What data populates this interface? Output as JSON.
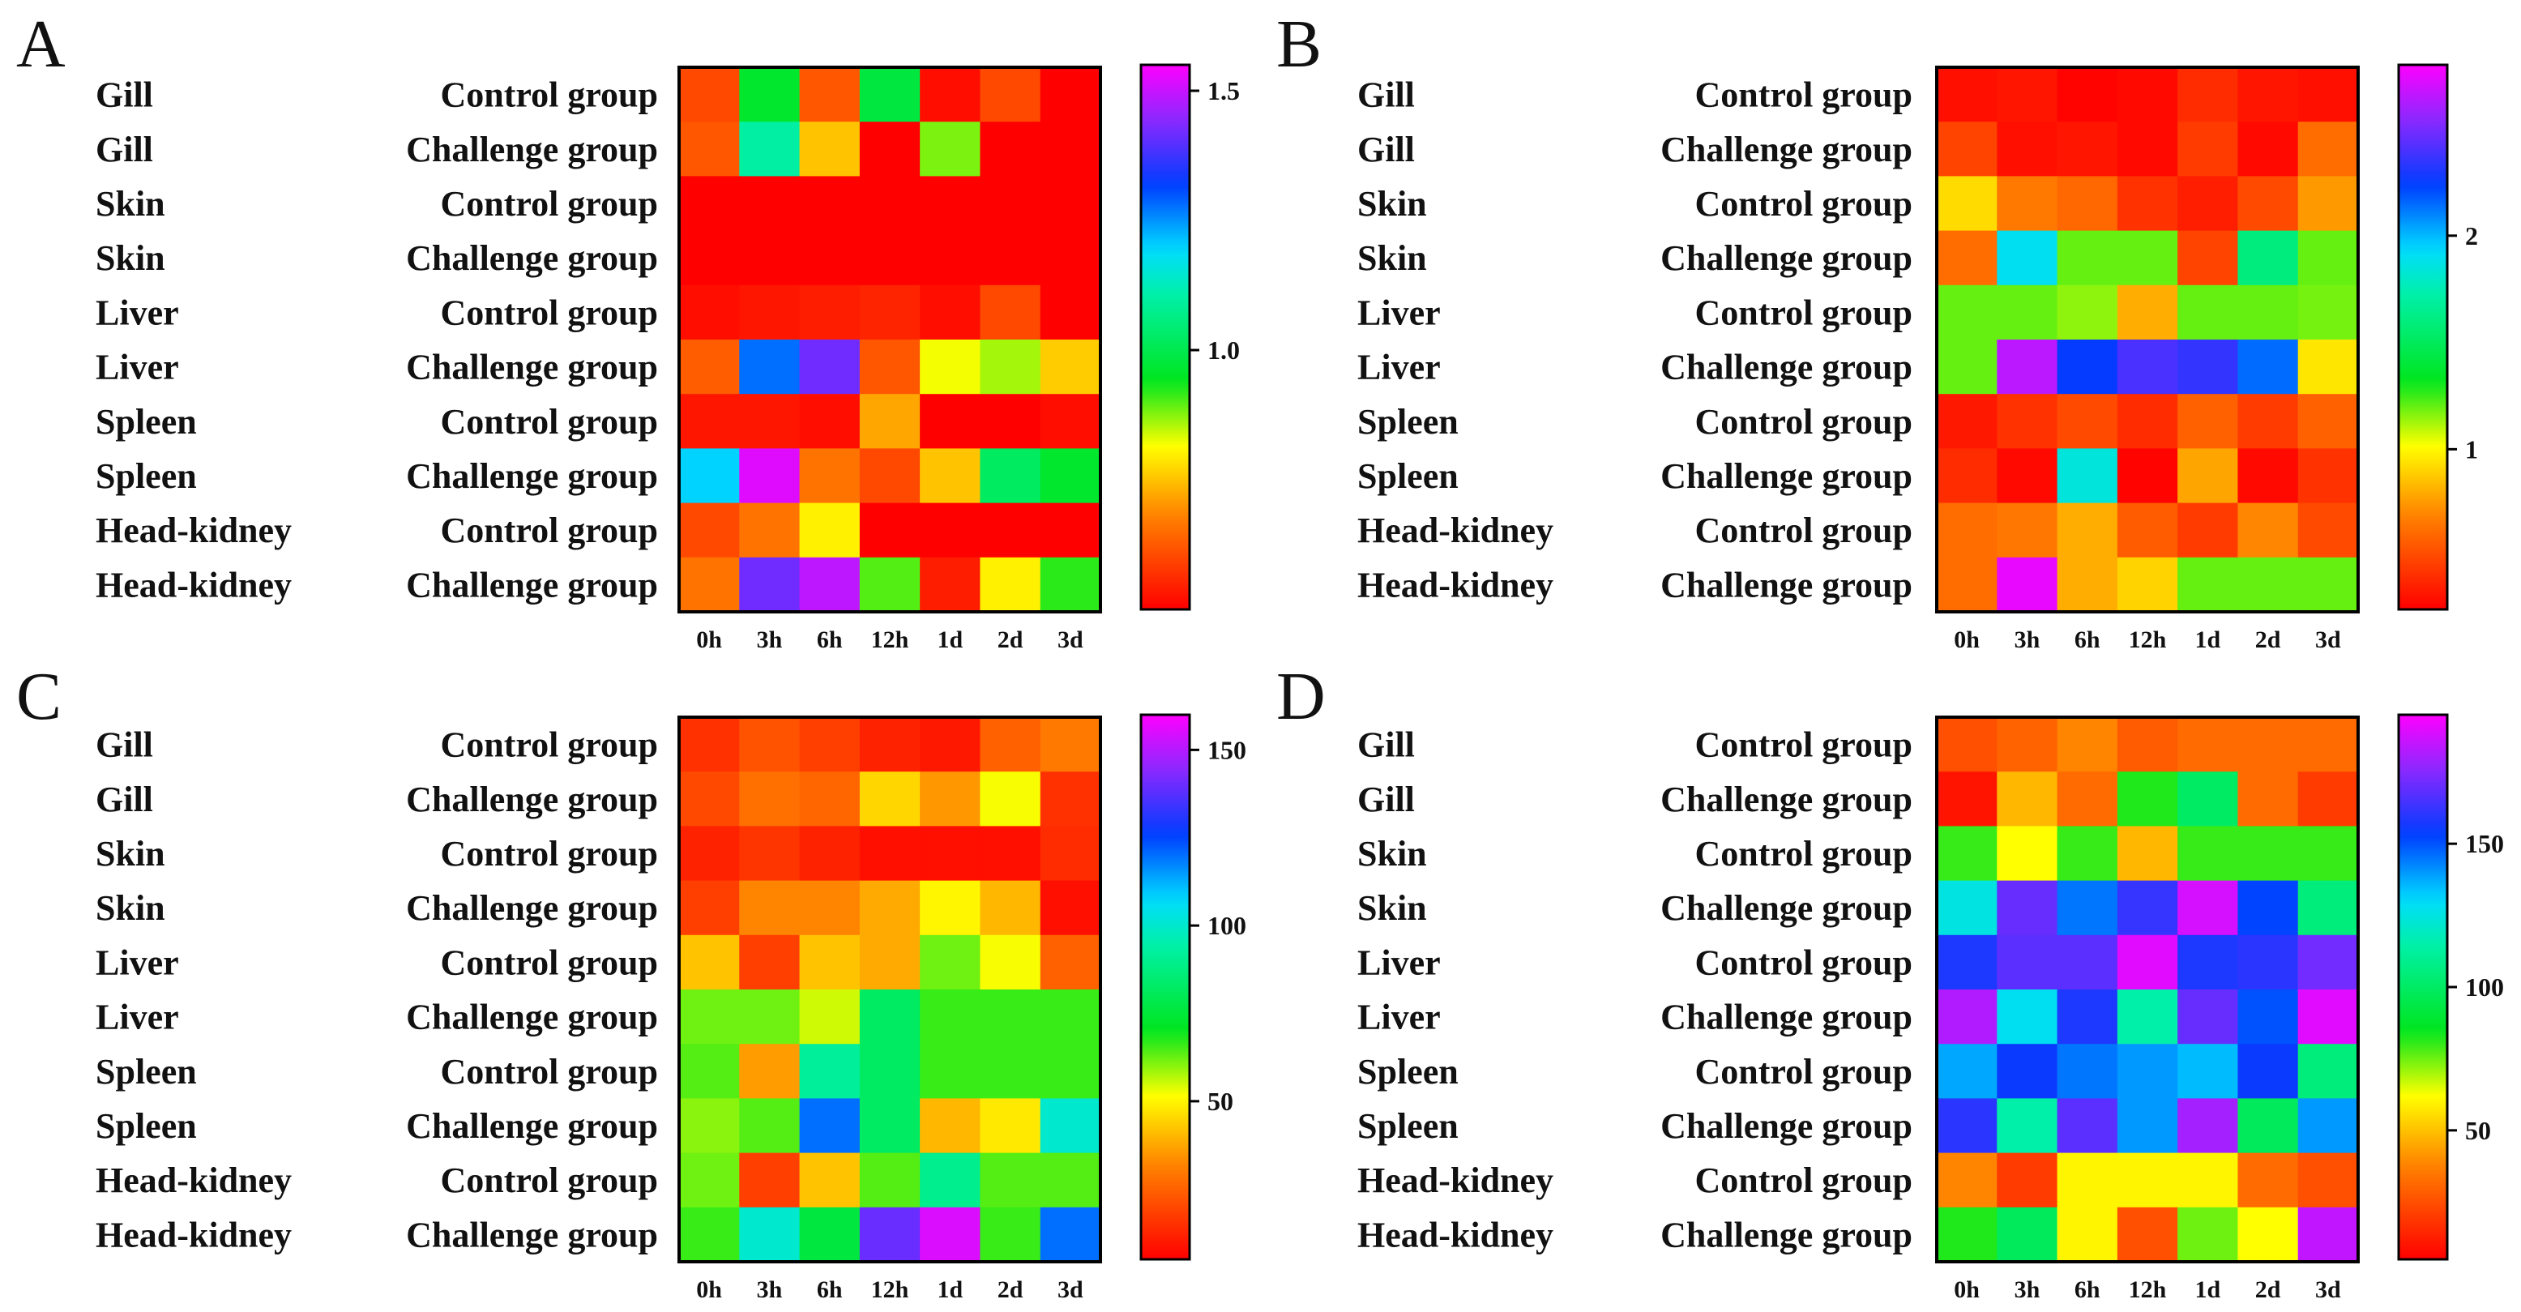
{
  "chart_data": [
    {
      "type": "heatmap",
      "panel": "A",
      "rows": [
        {
          "tissue": "Gill",
          "group": "Control group"
        },
        {
          "tissue": "Gill",
          "group": "Challenge group"
        },
        {
          "tissue": "Skin",
          "group": "Control group"
        },
        {
          "tissue": "Skin",
          "group": "Challenge group"
        },
        {
          "tissue": "Liver",
          "group": "Control group"
        },
        {
          "tissue": "Liver",
          "group": "Challenge group"
        },
        {
          "tissue": "Spleen",
          "group": "Control group"
        },
        {
          "tissue": "Spleen",
          "group": "Challenge group"
        },
        {
          "tissue": "Head-kidney",
          "group": "Control group"
        },
        {
          "tissue": "Head-kidney",
          "group": "Challenge group"
        }
      ],
      "columns": [
        "0h",
        "3h",
        "6h",
        "12h",
        "1d",
        "2d",
        "3d"
      ],
      "values": [
        [
          0.6,
          0.96,
          0.62,
          0.98,
          0.52,
          0.6,
          0.5
        ],
        [
          0.62,
          1.1,
          0.75,
          0.5,
          0.88,
          0.5,
          0.5
        ],
        [
          0.5,
          0.5,
          0.5,
          0.5,
          0.5,
          0.5,
          0.5
        ],
        [
          0.5,
          0.5,
          0.5,
          0.5,
          0.5,
          0.5,
          0.5
        ],
        [
          0.52,
          0.53,
          0.54,
          0.55,
          0.52,
          0.6,
          0.5
        ],
        [
          0.63,
          1.28,
          1.42,
          0.62,
          0.82,
          0.86,
          0.76
        ],
        [
          0.53,
          0.53,
          0.52,
          0.72,
          0.5,
          0.5,
          0.52
        ],
        [
          1.2,
          1.52,
          0.66,
          0.6,
          0.75,
          1.02,
          0.96
        ],
        [
          0.6,
          0.66,
          0.8,
          0.5,
          0.5,
          0.5,
          0.5
        ],
        [
          0.66,
          1.42,
          1.49,
          0.9,
          0.54,
          0.8,
          0.92
        ]
      ],
      "colorbar": {
        "min": 0.5,
        "max": 1.55,
        "ticks": [
          1.0,
          1.5
        ],
        "tick_labels": [
          "1.0",
          "1.5"
        ]
      }
    },
    {
      "type": "heatmap",
      "panel": "B",
      "rows": [
        {
          "tissue": "Gill",
          "group": "Control group"
        },
        {
          "tissue": "Gill",
          "group": "Challenge group"
        },
        {
          "tissue": "Skin",
          "group": "Control group"
        },
        {
          "tissue": "Skin",
          "group": "Challenge group"
        },
        {
          "tissue": "Liver",
          "group": "Control group"
        },
        {
          "tissue": "Liver",
          "group": "Challenge group"
        },
        {
          "tissue": "Spleen",
          "group": "Control group"
        },
        {
          "tissue": "Spleen",
          "group": "Challenge group"
        },
        {
          "tissue": "Head-kidney",
          "group": "Control group"
        },
        {
          "tissue": "Head-kidney",
          "group": "Challenge group"
        }
      ],
      "columns": [
        "0h",
        "3h",
        "6h",
        "12h",
        "1d",
        "2d",
        "3d"
      ],
      "values": [
        [
          0.3,
          0.32,
          0.26,
          0.28,
          0.4,
          0.32,
          0.3
        ],
        [
          0.48,
          0.3,
          0.32,
          0.28,
          0.45,
          0.28,
          0.62
        ],
        [
          0.92,
          0.66,
          0.6,
          0.42,
          0.35,
          0.5,
          0.75
        ],
        [
          0.62,
          1.9,
          1.2,
          1.2,
          0.48,
          1.6,
          1.2
        ],
        [
          1.2,
          1.2,
          1.15,
          0.8,
          1.2,
          1.2,
          1.18
        ],
        [
          1.2,
          2.65,
          2.25,
          2.4,
          2.35,
          2.15,
          0.95
        ],
        [
          0.33,
          0.42,
          0.5,
          0.4,
          0.58,
          0.45,
          0.58
        ],
        [
          0.4,
          0.28,
          1.85,
          0.26,
          0.78,
          0.28,
          0.42
        ],
        [
          0.62,
          0.65,
          0.8,
          0.56,
          0.45,
          0.7,
          0.5
        ],
        [
          0.62,
          2.75,
          0.8,
          0.9,
          1.2,
          1.2,
          1.2
        ]
      ],
      "colorbar": {
        "min": 0.25,
        "max": 2.8,
        "ticks": [
          1,
          2
        ],
        "tick_labels": [
          "1",
          "2"
        ]
      }
    },
    {
      "type": "heatmap",
      "panel": "C",
      "rows": [
        {
          "tissue": "Gill",
          "group": "Control group"
        },
        {
          "tissue": "Gill",
          "group": "Challenge group"
        },
        {
          "tissue": "Skin",
          "group": "Control group"
        },
        {
          "tissue": "Skin",
          "group": "Challenge group"
        },
        {
          "tissue": "Liver",
          "group": "Control group"
        },
        {
          "tissue": "Liver",
          "group": "Challenge group"
        },
        {
          "tissue": "Spleen",
          "group": "Control group"
        },
        {
          "tissue": "Spleen",
          "group": "Challenge group"
        },
        {
          "tissue": "Head-kidney",
          "group": "Control group"
        },
        {
          "tissue": "Head-kidney",
          "group": "Challenge group"
        }
      ],
      "columns": [
        "0h",
        "3h",
        "6h",
        "12h",
        "1d",
        "2d",
        "3d"
      ],
      "values": [
        [
          15,
          22,
          18,
          12,
          10,
          25,
          30
        ],
        [
          20,
          28,
          26,
          45,
          35,
          52,
          15
        ],
        [
          12,
          16,
          12,
          8,
          8,
          8,
          14
        ],
        [
          18,
          32,
          32,
          38,
          50,
          40,
          8
        ],
        [
          42,
          18,
          42,
          38,
          62,
          52,
          25
        ],
        [
          62,
          62,
          55,
          82,
          66,
          66,
          66
        ],
        [
          64,
          36,
          92,
          82,
          66,
          66,
          66
        ],
        [
          60,
          64,
          120,
          82,
          40,
          48,
          100
        ],
        [
          62,
          18,
          42,
          64,
          90,
          64,
          64
        ],
        [
          66,
          100,
          76,
          140,
          155,
          66,
          120
        ]
      ],
      "colorbar": {
        "min": 5,
        "max": 160,
        "ticks": [
          50,
          100,
          150
        ],
        "tick_labels": [
          "50",
          "100",
          "150"
        ]
      }
    },
    {
      "type": "heatmap",
      "panel": "D",
      "rows": [
        {
          "tissue": "Gill",
          "group": "Control group"
        },
        {
          "tissue": "Gill",
          "group": "Challenge group"
        },
        {
          "tissue": "Skin",
          "group": "Control group"
        },
        {
          "tissue": "Skin",
          "group": "Challenge group"
        },
        {
          "tissue": "Liver",
          "group": "Control group"
        },
        {
          "tissue": "Liver",
          "group": "Challenge group"
        },
        {
          "tissue": "Spleen",
          "group": "Control group"
        },
        {
          "tissue": "Spleen",
          "group": "Challenge group"
        },
        {
          "tissue": "Head-kidney",
          "group": "Control group"
        },
        {
          "tissue": "Head-kidney",
          "group": "Challenge group"
        }
      ],
      "columns": [
        "0h",
        "3h",
        "6h",
        "12h",
        "1d",
        "2d",
        "3d"
      ],
      "values": [
        [
          25,
          30,
          38,
          28,
          32,
          32,
          32
        ],
        [
          10,
          48,
          32,
          82,
          100,
          32,
          20
        ],
        [
          80,
          62,
          80,
          48,
          80,
          80,
          80
        ],
        [
          125,
          170,
          145,
          162,
          188,
          152,
          105
        ],
        [
          158,
          168,
          168,
          190,
          158,
          160,
          172
        ],
        [
          182,
          128,
          158,
          115,
          170,
          150,
          190
        ],
        [
          138,
          155,
          145,
          140,
          135,
          155,
          105
        ],
        [
          160,
          115,
          168,
          140,
          180,
          98,
          140
        ],
        [
          38,
          20,
          60,
          60,
          60,
          32,
          25
        ],
        [
          82,
          98,
          60,
          25,
          75,
          62,
          185
        ]
      ],
      "colorbar": {
        "min": 5,
        "max": 195,
        "ticks": [
          50,
          100,
          150
        ],
        "tick_labels": [
          "50",
          "100",
          "150"
        ]
      }
    }
  ]
}
